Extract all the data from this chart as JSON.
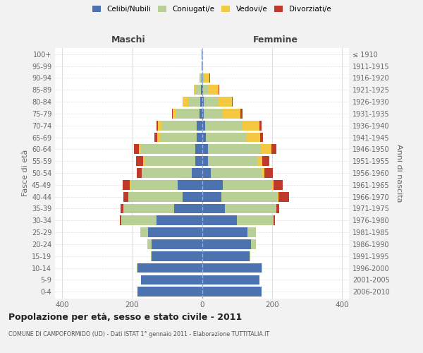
{
  "age_groups": [
    "0-4",
    "5-9",
    "10-14",
    "15-19",
    "20-24",
    "25-29",
    "30-34",
    "35-39",
    "40-44",
    "45-49",
    "50-54",
    "55-59",
    "60-64",
    "65-69",
    "70-74",
    "75-79",
    "80-84",
    "85-89",
    "90-94",
    "95-99",
    "100+"
  ],
  "birth_years": [
    "2006-2010",
    "2001-2005",
    "1996-2000",
    "1991-1995",
    "1986-1990",
    "1981-1985",
    "1976-1980",
    "1971-1975",
    "1966-1970",
    "1961-1965",
    "1956-1960",
    "1951-1955",
    "1946-1950",
    "1941-1945",
    "1936-1940",
    "1931-1935",
    "1926-1930",
    "1921-1925",
    "1916-1920",
    "1911-1915",
    "≤ 1910"
  ],
  "males_celibi": [
    185,
    175,
    185,
    145,
    145,
    155,
    130,
    80,
    55,
    70,
    30,
    20,
    20,
    15,
    15,
    8,
    5,
    3,
    2,
    1,
    1
  ],
  "males_coniugati": [
    0,
    0,
    1,
    2,
    10,
    20,
    100,
    145,
    155,
    135,
    140,
    145,
    155,
    105,
    100,
    65,
    35,
    15,
    5,
    1,
    0
  ],
  "males_vedovi": [
    0,
    0,
    0,
    0,
    2,
    2,
    0,
    0,
    0,
    2,
    2,
    3,
    5,
    8,
    10,
    10,
    15,
    5,
    0,
    0,
    0
  ],
  "males_divorziati": [
    0,
    0,
    0,
    0,
    0,
    0,
    5,
    8,
    15,
    20,
    15,
    20,
    15,
    8,
    5,
    3,
    0,
    0,
    0,
    0,
    0
  ],
  "females_nubili": [
    170,
    165,
    170,
    135,
    140,
    130,
    100,
    65,
    55,
    60,
    25,
    18,
    18,
    12,
    10,
    5,
    5,
    3,
    2,
    1,
    1
  ],
  "females_coniugate": [
    0,
    0,
    2,
    3,
    15,
    25,
    105,
    145,
    160,
    140,
    145,
    140,
    150,
    115,
    105,
    55,
    40,
    15,
    5,
    0,
    0
  ],
  "females_vedove": [
    0,
    0,
    0,
    0,
    0,
    0,
    0,
    2,
    3,
    5,
    8,
    15,
    30,
    40,
    50,
    50,
    40,
    30,
    15,
    2,
    0
  ],
  "females_divorziate": [
    0,
    0,
    0,
    0,
    0,
    0,
    3,
    8,
    30,
    25,
    25,
    20,
    15,
    8,
    5,
    5,
    3,
    2,
    2,
    0,
    0
  ],
  "color_celibi": "#4c72b0",
  "color_coniugati": "#b8cf95",
  "color_vedovi": "#f5c842",
  "color_divorziati": "#c0392b",
  "xlim": 420,
  "title": "Popolazione per età, sesso e stato civile - 2011",
  "subtitle": "COMUNE DI CAMPOFORMIDO (UD) - Dati ISTAT 1° gennaio 2011 - Elaborazione TUTTITALIA.IT",
  "xlabel_left": "Maschi",
  "xlabel_right": "Femmine",
  "ylabel_left": "Fasce di età",
  "ylabel_right": "Anni di nascita",
  "bg_color": "#f2f2f2",
  "plot_bg_color": "#ffffff"
}
